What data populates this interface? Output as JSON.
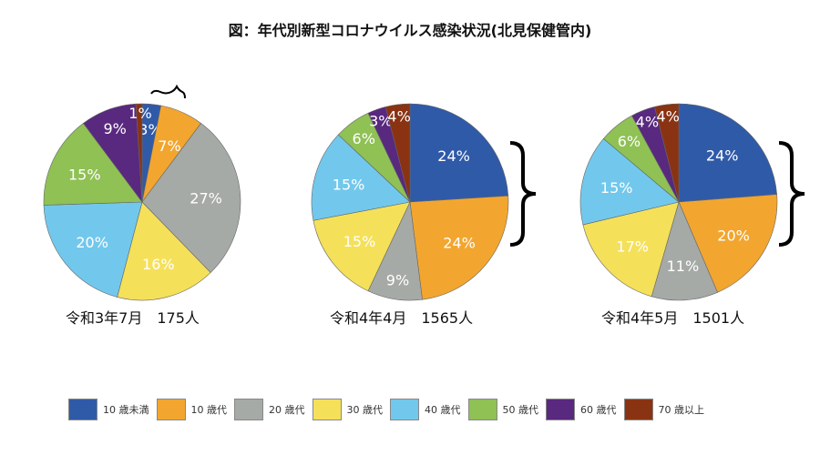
{
  "chart_data": [
    {
      "type": "pie",
      "caption": "令和3年7月　175人",
      "categories": [
        "10歳未満",
        "10歳代",
        "20歳代",
        "30歳代",
        "40歳代",
        "50歳代",
        "60歳代",
        "70歳以上"
      ],
      "values": [
        3,
        7,
        27,
        16,
        20,
        15,
        9,
        1
      ],
      "labels": [
        "3%",
        "7%",
        "27%",
        "16%",
        "20%",
        "15%",
        "9%",
        "1%"
      ]
    },
    {
      "type": "pie",
      "caption": "令和4年4月　1565人",
      "categories": [
        "10歳未満",
        "10歳代",
        "20歳代",
        "30歳代",
        "40歳代",
        "50歳代",
        "60歳代",
        "70歳以上"
      ],
      "values": [
        24,
        24,
        9,
        15,
        15,
        6,
        3,
        4
      ],
      "labels": [
        "24%",
        "24%",
        "9%",
        "15%",
        "15%",
        "6%",
        "3%",
        "4%"
      ]
    },
    {
      "type": "pie",
      "caption": "令和4年5月　1501人",
      "categories": [
        "10歳未満",
        "10歳代",
        "20歳代",
        "30歳代",
        "40歳代",
        "50歳代",
        "60歳代",
        "70歳以上"
      ],
      "values": [
        24,
        20,
        11,
        17,
        15,
        6,
        4,
        4
      ],
      "labels": [
        "24%",
        "20%",
        "11%",
        "17%",
        "15%",
        "6%",
        "4%",
        "4%"
      ]
    }
  ],
  "title": "図：年代別新型コロナウイルス感染状況(北見保健管内)",
  "legend": {
    "placement": "bottom",
    "items": [
      "10 歳未満",
      "10 歳代",
      "20 歳代",
      "30 歳代",
      "40 歳代",
      "50 歳代",
      "60 歳代",
      "70 歳以上"
    ]
  },
  "colors": [
    "#2f5aa8",
    "#f2a62f",
    "#a6aaa6",
    "#f5e05a",
    "#72c8ec",
    "#8fc155",
    "#59287f",
    "#8a3312"
  ]
}
